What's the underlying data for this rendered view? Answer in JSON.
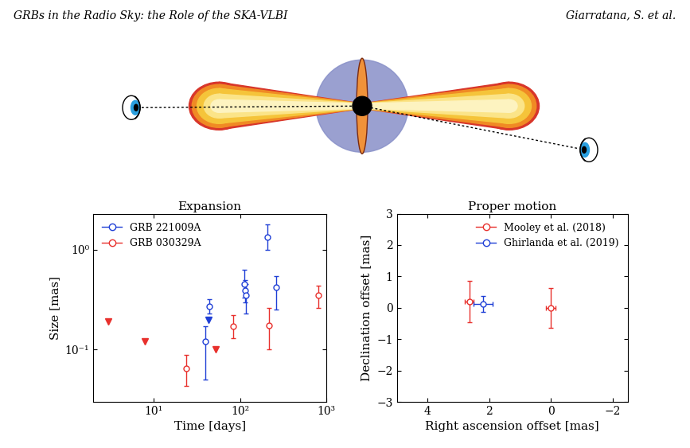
{
  "header": {
    "left": "GRBs in the Radio Sky: the Role of the SKA-VLBI",
    "right": "Giarratana, S. et al."
  },
  "chart_data": [
    {
      "type": "scatter",
      "title": "Expansion",
      "x_label": "Time [days]",
      "y_label": "Size [mas]",
      "log": true,
      "legend": "upper left",
      "xlim": [
        2,
        1000
      ],
      "xticks": [
        {
          "value": 10,
          "label": "10¹"
        },
        {
          "value": 100,
          "label": "10²"
        },
        {
          "value": 1000,
          "label": "10³"
        }
      ],
      "ylim": [
        0.03,
        2.3
      ],
      "yticks": [
        {
          "value": 0.1,
          "label": "10⁻¹"
        },
        {
          "value": 1,
          "label": "10⁰"
        }
      ],
      "series": [
        {
          "name": "GRB 221009A",
          "color": "#1f3fd6",
          "marker": "o",
          "x": [
            40,
            44,
            112,
            115,
            118,
            210,
            260
          ],
          "values": [
            0.12,
            0.27,
            0.45,
            0.39,
            0.35,
            1.35,
            0.42
          ],
          "y_low": [
            0.05,
            0.23,
            0.33,
            0.3,
            0.23,
            1.0,
            0.25
          ],
          "y_high": [
            0.17,
            0.32,
            0.63,
            0.5,
            0.45,
            1.8,
            0.55
          ],
          "upper_limits": {
            "x": [
              43
            ],
            "values": [
              0.2
            ]
          }
        },
        {
          "name": "GRB 030329A",
          "color": "#e8302c",
          "marker": "o",
          "x": [
            24,
            83,
            217,
            806
          ],
          "values": [
            0.065,
            0.17,
            0.175,
            0.35
          ],
          "y_low": [
            0.043,
            0.13,
            0.1,
            0.26
          ],
          "y_high": [
            0.088,
            0.22,
            0.26,
            0.44
          ],
          "upper_limits": {
            "x": [
              3,
              8,
              52
            ],
            "values": [
              0.19,
              0.12,
              0.1
            ]
          }
        }
      ]
    },
    {
      "type": "scatter",
      "title": "Proper motion",
      "x_label": "Right ascension offset [mas]",
      "y_label": "Declination offset [mas]",
      "legend": "upper right",
      "xlim": [
        5,
        -2.5
      ],
      "xticks": [
        4,
        2,
        0,
        {
          "value": -2,
          "label": "−2"
        }
      ],
      "ylim": [
        -3,
        3
      ],
      "yticks": [
        {
          "value": -3,
          "label": "−3"
        },
        {
          "value": -2,
          "label": "−2"
        },
        {
          "value": -1,
          "label": "−1"
        },
        0,
        1,
        2,
        3
      ],
      "series": [
        {
          "name": "Mooley et al. (2018)",
          "color": "#e8302c",
          "marker": "o",
          "x": [
            2.65,
            0.0
          ],
          "values": [
            0.2,
            0.0
          ],
          "xerr": [
            0.15,
            0.15
          ],
          "yerr": [
            0.65,
            0.63
          ]
        },
        {
          "name": "Ghirlanda et al. (2019)",
          "color": "#1f3fd6",
          "marker": "o",
          "x": [
            2.2
          ],
          "values": [
            0.13
          ],
          "xerr": [
            0.3
          ],
          "yerr": [
            0.25
          ]
        }
      ]
    }
  ]
}
